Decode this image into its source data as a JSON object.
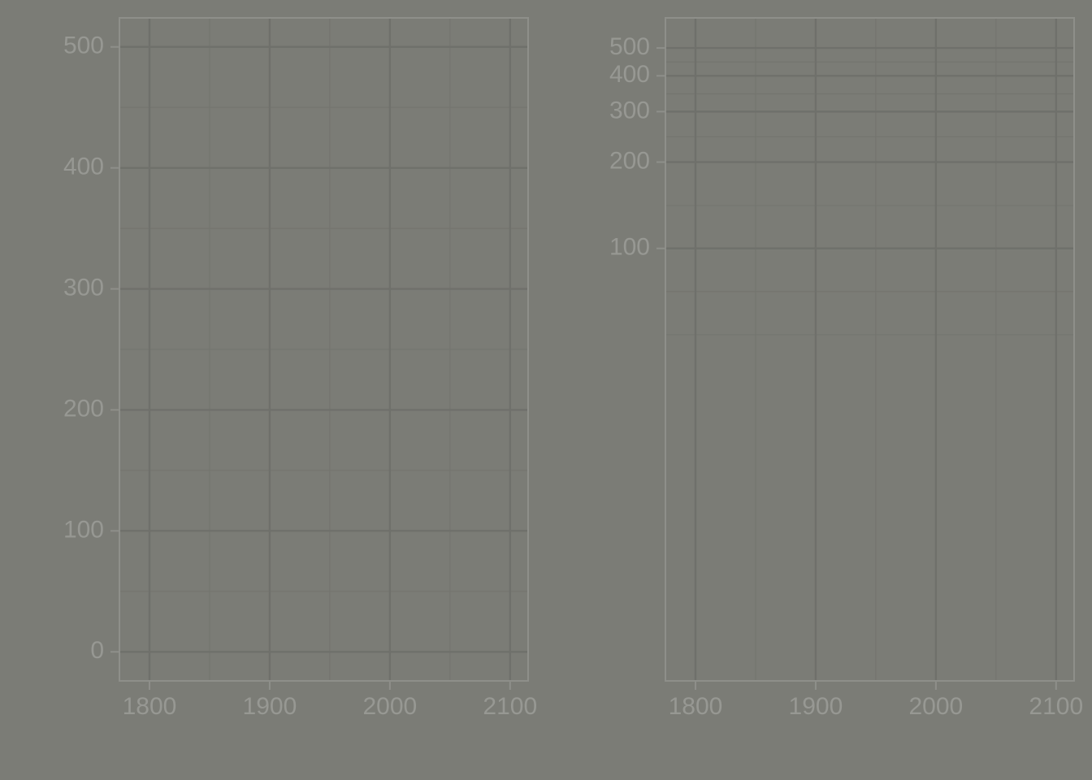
{
  "chart_data": [
    {
      "type": "line",
      "scale": "linear",
      "series": [],
      "xlim": [
        1775,
        2115
      ],
      "xticks": [
        1800,
        1900,
        2000,
        2100
      ],
      "xminor": [
        1850,
        1950,
        2050
      ],
      "ylim": [
        -24,
        524
      ],
      "yticks": [
        0,
        100,
        200,
        300,
        400,
        500
      ],
      "yminor": [
        50,
        150,
        250,
        350,
        450
      ],
      "grid": true
    },
    {
      "type": "line",
      "scale": "log",
      "series": [],
      "xlim": [
        1775,
        2115
      ],
      "xticks": [
        1800,
        1900,
        2000,
        2100
      ],
      "xminor": [
        1850,
        1950,
        2050
      ],
      "ylim": [
        3.1,
        637
      ],
      "yticks": [
        100,
        200,
        300,
        400,
        500
      ],
      "yminor": [
        50,
        70.7,
        141,
        245,
        346,
        447
      ],
      "grid": true
    }
  ]
}
